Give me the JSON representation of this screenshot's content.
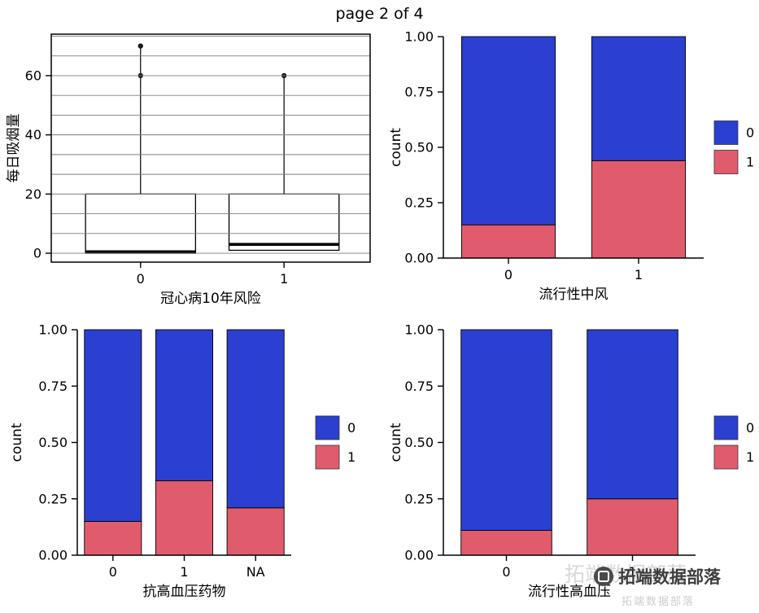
{
  "title": "page 2 of 4",
  "colors": {
    "blue": "#2b3fd1",
    "red": "#e05c6d"
  },
  "watermark": {
    "text": "拓端数据部落"
  },
  "chart_data": [
    {
      "id": "smoking-by-chd-risk",
      "type": "boxplot",
      "xlabel": "冠心病10年风险",
      "ylabel": "每日吸烟量",
      "categories": [
        "0",
        "1"
      ],
      "yticks": [
        0,
        20,
        40,
        60
      ],
      "ylim": [
        -3,
        74
      ],
      "grid": true,
      "boxes": [
        {
          "category": "0",
          "q1": 0,
          "median": 0.5,
          "q3": 20,
          "whisker_high": 70,
          "outliers": [
            60,
            70
          ]
        },
        {
          "category": "1",
          "q1": 1,
          "median": 3,
          "q3": 20,
          "whisker_high": 60,
          "outliers": [
            60
          ]
        }
      ]
    },
    {
      "id": "count-by-prevalent-stroke",
      "type": "stacked_bar",
      "xlabel": "流行性中风",
      "ylabel": "count",
      "categories": [
        "0",
        "1"
      ],
      "yticks": [
        "0.00",
        "0.25",
        "0.50",
        "0.75",
        "1.00"
      ],
      "ylim": [
        0,
        1
      ],
      "series": [
        {
          "name": "1",
          "color": "red",
          "values": [
            0.15,
            0.44
          ]
        },
        {
          "name": "0",
          "color": "blue",
          "values": [
            0.85,
            0.56
          ]
        }
      ],
      "legend": [
        {
          "label": "0",
          "color": "blue"
        },
        {
          "label": "1",
          "color": "red"
        }
      ]
    },
    {
      "id": "count-by-antihypertensive-meds",
      "type": "stacked_bar",
      "xlabel": "抗高血压药物",
      "ylabel": "count",
      "categories": [
        "0",
        "1",
        "NA"
      ],
      "yticks": [
        "0.00",
        "0.25",
        "0.50",
        "0.75",
        "1.00"
      ],
      "ylim": [
        0,
        1
      ],
      "series": [
        {
          "name": "1",
          "color": "red",
          "values": [
            0.15,
            0.33,
            0.21
          ]
        },
        {
          "name": "0",
          "color": "blue",
          "values": [
            0.85,
            0.67,
            0.79
          ]
        }
      ],
      "legend": [
        {
          "label": "0",
          "color": "blue"
        },
        {
          "label": "1",
          "color": "red"
        }
      ]
    },
    {
      "id": "count-by-prevalent-hypertension",
      "type": "stacked_bar",
      "xlabel": "流行性高血压",
      "ylabel": "count",
      "categories": [
        "0",
        "1"
      ],
      "yticks": [
        "0.00",
        "0.25",
        "0.50",
        "0.75",
        "1.00"
      ],
      "ylim": [
        0,
        1
      ],
      "series": [
        {
          "name": "1",
          "color": "red",
          "values": [
            0.11,
            0.25
          ]
        },
        {
          "name": "0",
          "color": "blue",
          "values": [
            0.89,
            0.75
          ]
        }
      ],
      "legend": [
        {
          "label": "0",
          "color": "blue"
        },
        {
          "label": "1",
          "color": "red"
        }
      ]
    }
  ]
}
